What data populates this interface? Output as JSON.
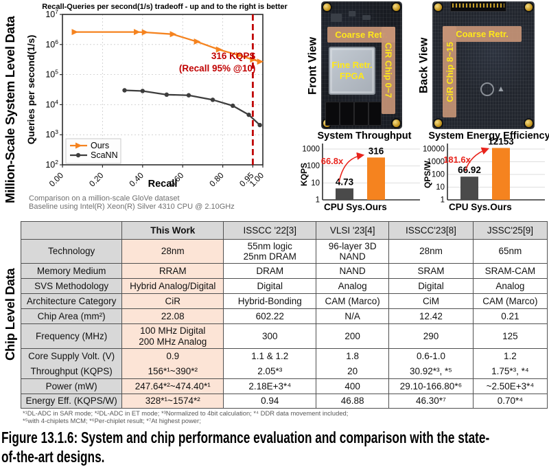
{
  "section_labels": {
    "top": "Million-Scale System Level Data",
    "bottom": "Chip Level Data"
  },
  "chart_captions": [
    "Comparison on a million-scale GloVe dataset",
    "Baseline using Intel(R) Xeon(R) Silver 4310 CPU @ 2.10GHz"
  ],
  "chart_data": [
    {
      "type": "line",
      "title": "Recall-Queries per second(1/s) tradeoff - up and to the right is better",
      "xlabel": "Recall",
      "ylabel": "Queries per second(1/s)",
      "y_scale": "log",
      "ylim": [
        100,
        10000000
      ],
      "y_tick_exponents": [
        2,
        3,
        4,
        5,
        6,
        7
      ],
      "x_ticks": [
        0.0,
        0.2,
        0.4,
        0.6,
        0.8,
        0.95,
        1.0
      ],
      "x_tick_labels": [
        "0.00",
        "0.20",
        "0.40",
        "0.60",
        "0.80",
        "0.95",
        "1.00"
      ],
      "x_gridlines": [
        0.2,
        0.4,
        0.6,
        0.8
      ],
      "grid": true,
      "legend_position": "lower-left",
      "series": [
        {
          "name": "Ours",
          "color": "#f5831f",
          "marker": "triangle-right",
          "x": [
            0.06,
            0.37,
            0.41,
            0.55,
            0.67,
            0.78,
            0.88,
            0.95,
            0.985
          ],
          "y": [
            2600000,
            2600000,
            2550000,
            2200000,
            1250000,
            680000,
            440000,
            316000,
            270000
          ]
        },
        {
          "name": "ScaNN",
          "color": "#3d3d3d",
          "marker": "circle",
          "x": [
            0.31,
            0.4,
            0.52,
            0.63,
            0.75,
            0.85,
            0.93,
            0.985
          ],
          "y": [
            30000,
            28500,
            21500,
            20500,
            14500,
            9200,
            4600,
            2100
          ]
        }
      ],
      "vline": {
        "x": 0.95,
        "color": "#c00000",
        "style": "dashed"
      },
      "annotation": {
        "lines": [
          "316 KQPS",
          "(Recall 95% @10)"
        ],
        "color": "#c00000"
      }
    },
    {
      "type": "bar",
      "title": "System Throughput",
      "ylabel": "KQPS",
      "y_scale": "log",
      "ylim": [
        1,
        1000
      ],
      "y_ticks": [
        1,
        10,
        100,
        1000
      ],
      "categories": [
        "CPU Sys.",
        "Ours"
      ],
      "values": [
        4.73,
        316
      ],
      "value_labels": [
        "4.73",
        "316"
      ],
      "bar_colors": [
        "#4a4a4a",
        "#f5831f"
      ],
      "speedup_annotation": {
        "text": "66.8x",
        "color": "#e8241c"
      }
    },
    {
      "type": "bar",
      "title": "System Energy Efficiency",
      "ylabel": "QPS/W",
      "y_scale": "log",
      "ylim": [
        1,
        10000
      ],
      "y_ticks": [
        1,
        10,
        100,
        1000,
        10000
      ],
      "categories": [
        "CPU Sys.",
        "Ours"
      ],
      "values": [
        66.92,
        12153
      ],
      "value_labels": [
        "66.92",
        "12153"
      ],
      "bar_colors": [
        "#4a4a4a",
        "#f5831f"
      ],
      "speedup_annotation": {
        "text": "181.6x",
        "color": "#e8241c"
      }
    }
  ],
  "boards": {
    "front": {
      "view_label": "Front View",
      "coarse": "Coarse Retr.",
      "fine_line1": "Fine Retr.",
      "fine_line2": "FPGA",
      "cir": "CiR Chip 0~7"
    },
    "back": {
      "view_label": "Back View",
      "coarse": "Coarse Retr.",
      "cir": "CiR Chip 8~15"
    }
  },
  "table": {
    "headers": [
      "",
      "This Work",
      "ISSCC '22[3]",
      "VLSI '23[4]",
      "ISSCC'23[8]",
      "JSSC'25[9]"
    ],
    "rows": [
      {
        "label": "Technology",
        "values": [
          "28nm",
          "55nm logic\n25nm DRAM",
          "96-layer 3D\nNAND",
          "28nm",
          "65nm"
        ]
      },
      {
        "label": "Memory Medium",
        "values": [
          "RRAM",
          "DRAM",
          "NAND",
          "SRAM",
          "SRAM-CAM"
        ]
      },
      {
        "label": "SVS Methodology",
        "values": [
          "Hybrid Analog/Digital",
          "Digital",
          "Analog",
          "Digital",
          "Analog"
        ]
      },
      {
        "label": "Architecture Category",
        "values": [
          "CiR",
          "Hybrid-Bonding",
          "CAM (Marco)",
          "CiM",
          "CAM (Marco)"
        ]
      },
      {
        "label": "Chip Area (mm²)",
        "values": [
          "22.08",
          "602.22",
          "N/A",
          "12.42",
          "0.21"
        ]
      },
      {
        "label": "Frequency (MHz)",
        "values": [
          "100 MHz Digital\n200 MHz Analog",
          "300",
          "200",
          "290",
          "125"
        ]
      },
      {
        "label": "Core Supply Volt. (V)",
        "values": [
          "0.9",
          "1.1 & 1.2",
          "1.8",
          "0.6-1.0",
          "1.2"
        ]
      },
      {
        "label": "Throughput (KQPS)",
        "values": [
          "156*¹~390*²",
          "2.05*³",
          "20",
          "30.92*³, *⁵",
          "1.75*³, *⁴"
        ]
      },
      {
        "label": "Power (mW)",
        "values": [
          "247.64*²~474.40*¹",
          "2.18E+3*⁴",
          "400",
          "29.10-166.80*⁶",
          "~2.50E+3*⁴"
        ]
      },
      {
        "label": "Energy Eff. (KQPS/W)",
        "values": [
          "328*¹~1574*²",
          "0.94",
          "46.88",
          "46.30*⁷",
          "0.70*⁴"
        ]
      }
    ],
    "footnotes": [
      "*¹DL-ADC in SAR mode; *²DL-ADC in ET mode; *³Normalized to 4bit calculation; *⁴ DDR data movement included;",
      "*⁵with 4-chiplets MCM; *⁶Per-chiplet result; *⁷At highest power;"
    ]
  },
  "figure_caption_lines": [
    "Figure 13.1.6: System and chip performance evaluation and comparison with the state-",
    "of-the-art designs."
  ],
  "colors": {
    "accent_orange": "#f5831f",
    "bar_gray": "#4a4a4a",
    "annotation_red": "#c00000",
    "arrow_red": "#e8241c",
    "table_highlight": "#fce4d6",
    "table_header_bg": "#d8d8d8"
  }
}
